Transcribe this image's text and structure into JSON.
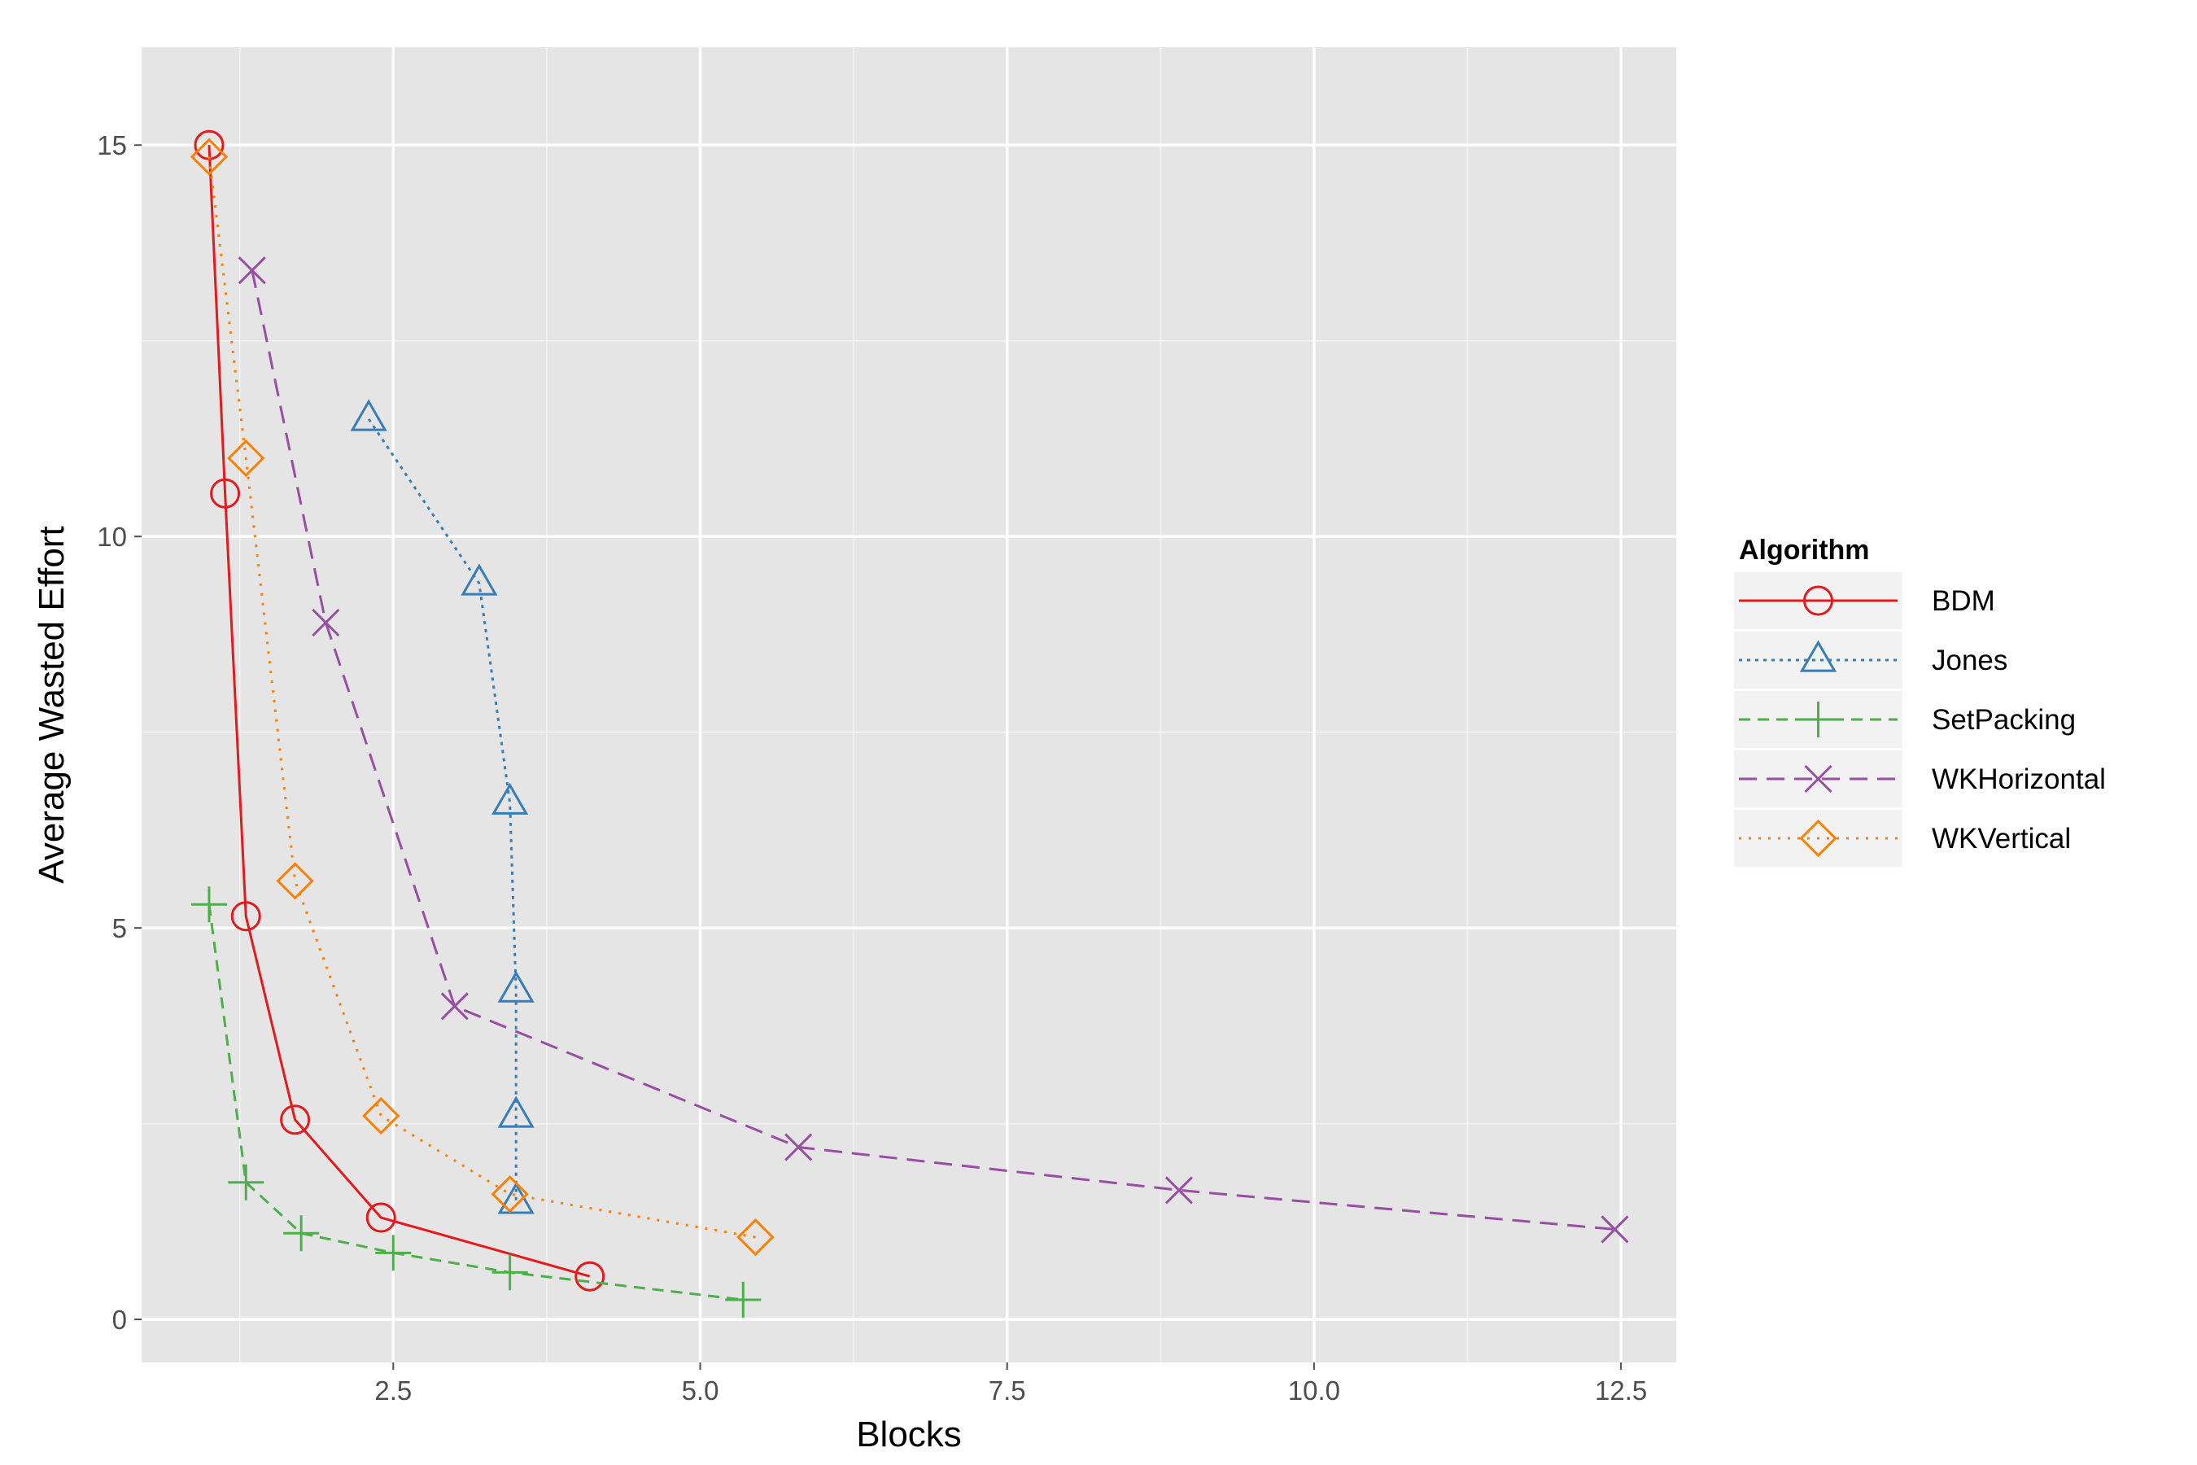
{
  "chart_data": {
    "type": "line",
    "xlabel": "Blocks",
    "ylabel": "Average Wasted Effort",
    "xlim": [
      0.45,
      12.95
    ],
    "ylim": [
      -0.55,
      16.25
    ],
    "x_ticks": [
      2.5,
      5.0,
      7.5,
      10.0,
      12.5
    ],
    "x_tick_labels": [
      "2.5",
      "5.0",
      "7.5",
      "10.0",
      "12.5"
    ],
    "y_ticks": [
      0,
      5,
      10,
      15
    ],
    "y_tick_labels": [
      "0",
      "5",
      "10",
      "15"
    ],
    "grid": true,
    "legend": {
      "title": "Algorithm",
      "placement": "right"
    },
    "series": [
      {
        "name": "BDM",
        "color": "#e41a1c",
        "dash": "solid",
        "marker": "circle",
        "x": [
          1.0,
          1.13,
          1.3,
          1.7,
          2.4,
          4.1
        ],
        "y": [
          15.0,
          10.55,
          5.15,
          2.55,
          1.3,
          0.55
        ]
      },
      {
        "name": "Jones",
        "color": "#377eb8",
        "dash": "dotted-fine",
        "marker": "triangle",
        "x": [
          2.3,
          3.2,
          3.45,
          3.5,
          3.5,
          3.5
        ],
        "y": [
          11.5,
          9.4,
          6.6,
          4.2,
          2.6,
          1.5
        ]
      },
      {
        "name": "SetPacking",
        "color": "#4daf4a",
        "dash": "dashed",
        "marker": "plus",
        "x": [
          1.0,
          1.3,
          1.75,
          2.5,
          3.45,
          5.35
        ],
        "y": [
          5.3,
          1.75,
          1.1,
          0.85,
          0.6,
          0.25
        ]
      },
      {
        "name": "WKHorizontal",
        "color": "#984ea3",
        "dash": "dashed-long",
        "marker": "x",
        "x": [
          1.35,
          1.95,
          3.0,
          5.8,
          8.9,
          12.45
        ],
        "y": [
          13.4,
          8.9,
          4.0,
          2.2,
          1.65,
          1.15
        ]
      },
      {
        "name": "WKVertical",
        "color": "#ff7f00",
        "dash": "dotted",
        "marker": "diamond",
        "x": [
          1.0,
          1.3,
          1.7,
          2.4,
          3.45,
          5.45
        ],
        "y": [
          14.85,
          11.0,
          5.6,
          2.6,
          1.6,
          1.05
        ]
      }
    ]
  }
}
